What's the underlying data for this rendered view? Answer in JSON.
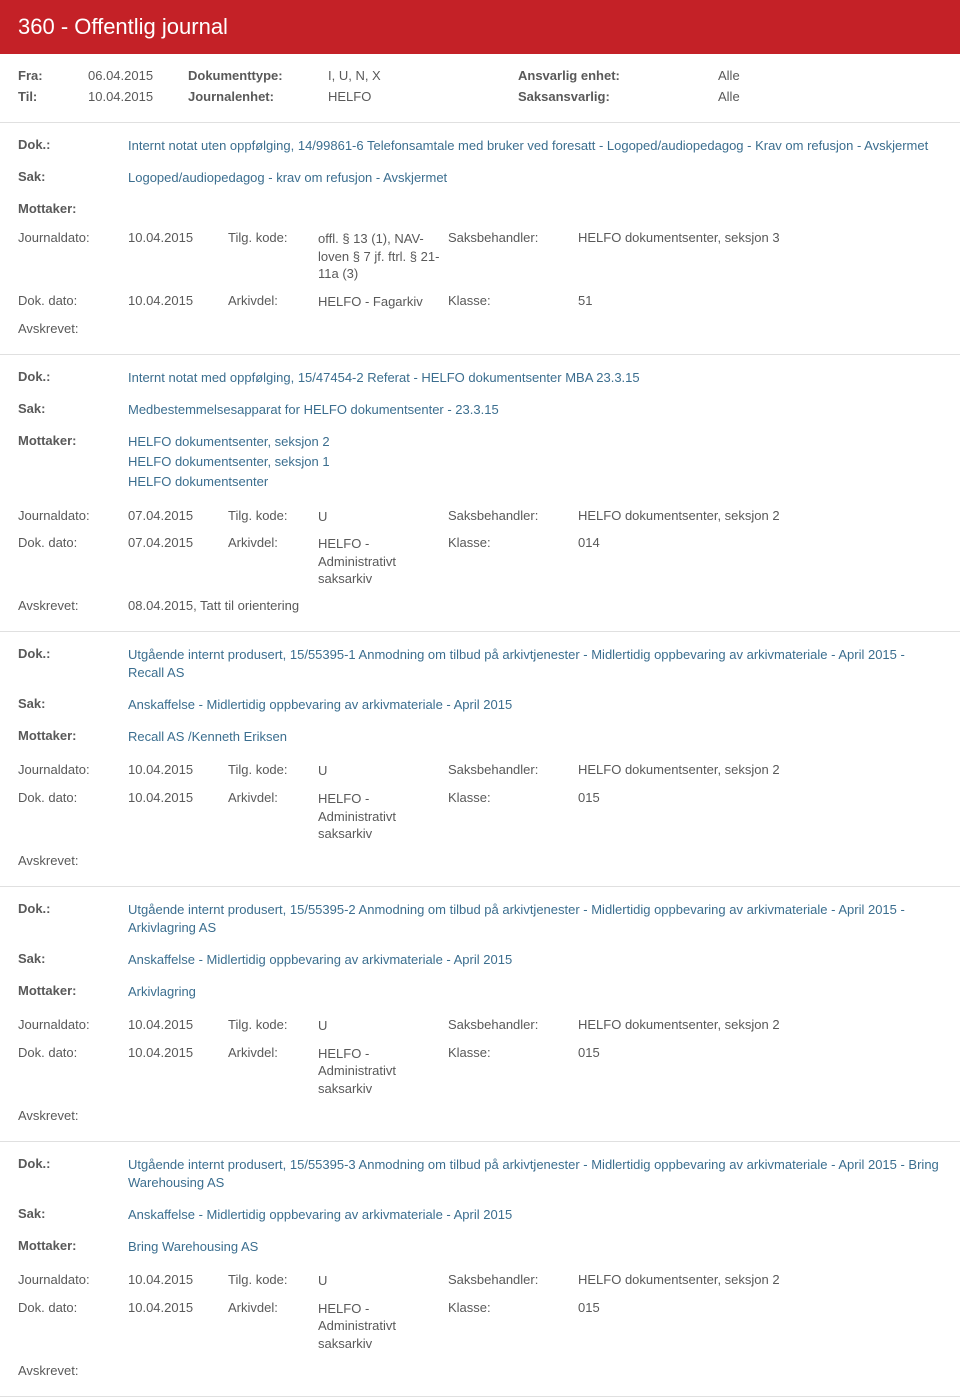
{
  "header": {
    "title": "360 - Offentlig journal"
  },
  "filters": {
    "row1": {
      "l1": "Fra:",
      "v1": "06.04.2015",
      "l2": "Dokumenttype:",
      "v2": "I, U, N, X",
      "l3": "Ansvarlig enhet:",
      "v3": "Alle"
    },
    "row2": {
      "l1": "Til:",
      "v1": "10.04.2015",
      "l2": "Journalenhet:",
      "v2": "HELFO",
      "l3": "Saksansvarlig:",
      "v3": "Alle"
    }
  },
  "labels": {
    "dok": "Dok.:",
    "sak": "Sak:",
    "mottaker": "Mottaker:",
    "journaldato": "Journaldato:",
    "tilgkode": "Tilg. kode:",
    "saksbehandler": "Saksbehandler:",
    "dokdato": "Dok. dato:",
    "arkivdel": "Arkivdel:",
    "klasse": "Klasse:",
    "avskrevet": "Avskrevet:"
  },
  "entries": [
    {
      "dok": "Internt notat uten oppfølging, 14/99861-6 Telefonsamtale med bruker ved foresatt - Logoped/audiopedagog - Krav om refusjon - Avskjermet",
      "sak": "Logoped/audiopedagog - krav om refusjon - Avskjermet",
      "mottaker": [],
      "journaldato": "10.04.2015",
      "tilgkode": "offl. § 13 (1), NAV-loven § 7 jf. ftrl. § 21-11a (3)",
      "saksbehandler": "HELFO dokumentsenter, seksjon 3",
      "dokdato": "10.04.2015",
      "arkivdel": "HELFO - Fagarkiv",
      "klasse": "51",
      "avskrevet": ""
    },
    {
      "dok": "Internt notat med oppfølging, 15/47454-2 Referat - HELFO dokumentsenter MBA 23.3.15",
      "sak": "Medbestemmelsesapparat for HELFO dokumentsenter - 23.3.15",
      "mottaker": [
        "HELFO dokumentsenter, seksjon 2",
        "HELFO dokumentsenter, seksjon 1",
        "HELFO dokumentsenter"
      ],
      "journaldato": "07.04.2015",
      "tilgkode": "U",
      "saksbehandler": "HELFO dokumentsenter, seksjon 2",
      "dokdato": "07.04.2015",
      "arkivdel": "HELFO - Administrativt saksarkiv",
      "klasse": "014",
      "avskrevet": "08.04.2015, Tatt til orientering"
    },
    {
      "dok": "Utgående internt produsert, 15/55395-1 Anmodning om tilbud på arkivtjenester - Midlertidig oppbevaring av arkivmateriale - April 2015 - Recall AS",
      "sak": "Anskaffelse - Midlertidig oppbevaring av arkivmateriale - April 2015",
      "mottaker": [
        "Recall AS /Kenneth Eriksen"
      ],
      "journaldato": "10.04.2015",
      "tilgkode": "U",
      "saksbehandler": "HELFO dokumentsenter, seksjon 2",
      "dokdato": "10.04.2015",
      "arkivdel": "HELFO - Administrativt saksarkiv",
      "klasse": "015",
      "avskrevet": ""
    },
    {
      "dok": "Utgående internt produsert, 15/55395-2 Anmodning om tilbud på arkivtjenester - Midlertidig oppbevaring av arkivmateriale - April 2015 - Arkivlagring AS",
      "sak": "Anskaffelse - Midlertidig oppbevaring av arkivmateriale - April 2015",
      "mottaker": [
        "Arkivlagring"
      ],
      "journaldato": "10.04.2015",
      "tilgkode": "U",
      "saksbehandler": "HELFO dokumentsenter, seksjon 2",
      "dokdato": "10.04.2015",
      "arkivdel": "HELFO - Administrativt saksarkiv",
      "klasse": "015",
      "avskrevet": ""
    },
    {
      "dok": "Utgående internt produsert, 15/55395-3 Anmodning om tilbud på arkivtjenester - Midlertidig oppbevaring av arkivmateriale - April 2015  - Bring Warehousing AS",
      "sak": "Anskaffelse - Midlertidig oppbevaring av arkivmateriale - April 2015",
      "mottaker": [
        "Bring Warehousing AS"
      ],
      "journaldato": "10.04.2015",
      "tilgkode": "U",
      "saksbehandler": "HELFO dokumentsenter, seksjon 2",
      "dokdato": "10.04.2015",
      "arkivdel": "HELFO - Administrativt saksarkiv",
      "klasse": "015",
      "avskrevet": ""
    }
  ]
}
